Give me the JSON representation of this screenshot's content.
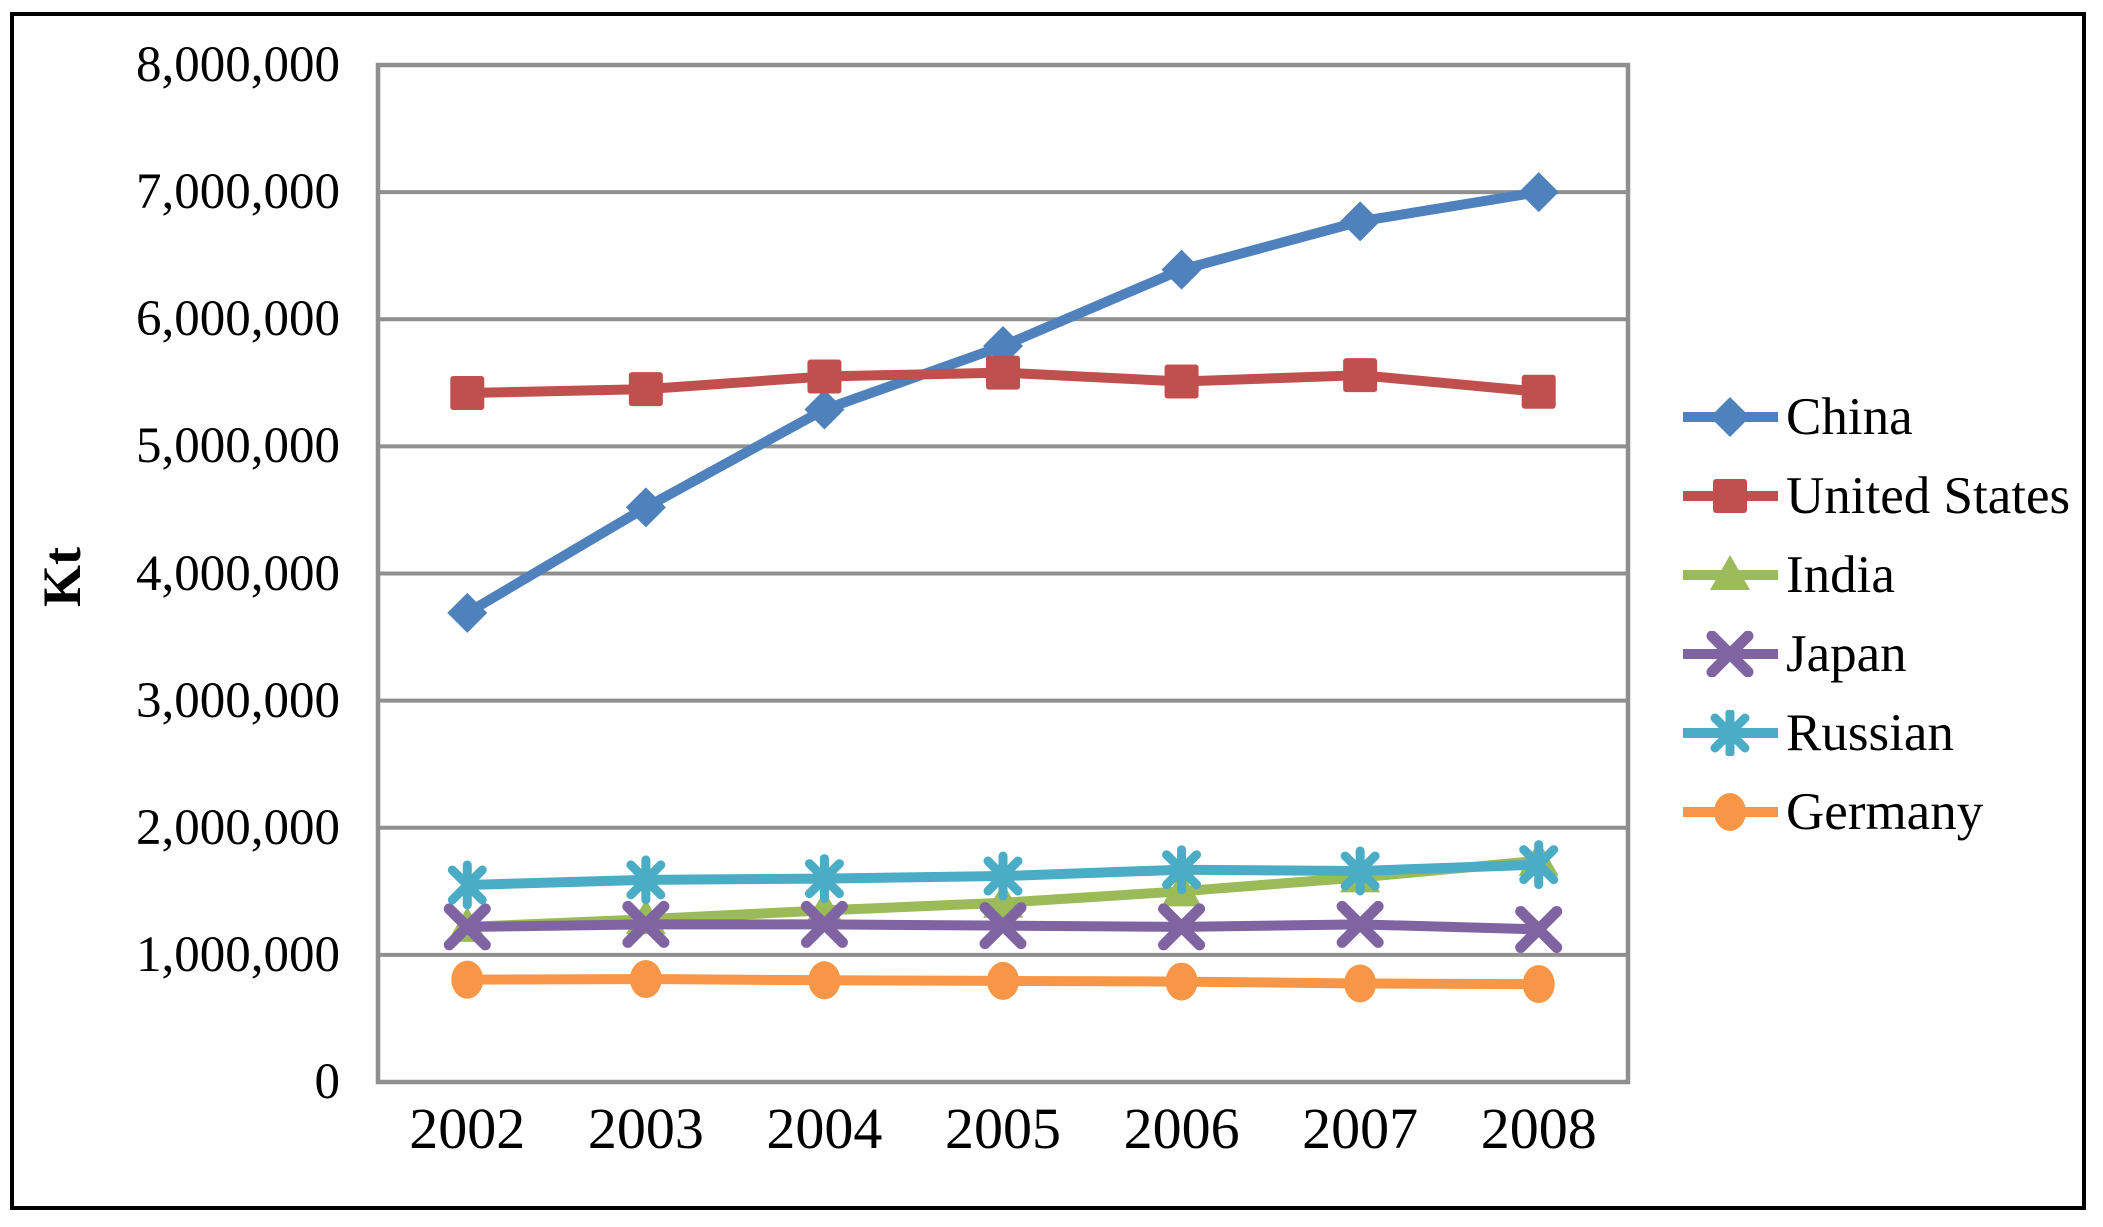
{
  "chart_data": {
    "type": "line",
    "title": "",
    "xlabel": "",
    "ylabel": "Kt",
    "categories": [
      "2002",
      "2003",
      "2004",
      "2005",
      "2006",
      "2007",
      "2008"
    ],
    "y_axis": {
      "min": 0,
      "max": 8000000,
      "tick_interval": 1000000,
      "tick_labels": [
        "0",
        "1,000,000",
        "2,000,000",
        "3,000,000",
        "4,000,000",
        "5,000,000",
        "6,000,000",
        "7,000,000",
        "8,000,000"
      ]
    },
    "grid": "horizontal",
    "legend_position": "right",
    "series": [
      {
        "name": "China",
        "color": "#4F81BD",
        "marker": "diamond",
        "values": [
          3690000,
          4520000,
          5290000,
          5790000,
          6390000,
          6770000,
          7000000
        ]
      },
      {
        "name": "United States",
        "color": "#C0504D",
        "marker": "square",
        "values": [
          5420000,
          5450000,
          5550000,
          5580000,
          5510000,
          5560000,
          5430000
        ]
      },
      {
        "name": "India",
        "color": "#9BBB59",
        "marker": "triangle",
        "values": [
          1220000,
          1280000,
          1350000,
          1410000,
          1500000,
          1610000,
          1740000
        ]
      },
      {
        "name": "Japan",
        "color": "#8064A2",
        "marker": "x",
        "values": [
          1220000,
          1240000,
          1240000,
          1230000,
          1220000,
          1240000,
          1200000
        ]
      },
      {
        "name": "Russian",
        "color": "#4BACC6",
        "marker": "star",
        "values": [
          1550000,
          1590000,
          1600000,
          1620000,
          1670000,
          1660000,
          1710000
        ]
      },
      {
        "name": "Germany",
        "color": "#F79646",
        "marker": "circle",
        "values": [
          805000,
          810000,
          800000,
          795000,
          790000,
          775000,
          770000
        ]
      }
    ]
  },
  "colors": {
    "gridline": "#8F8F8F",
    "axis": "#8F8F8F",
    "frame_border": "#000000",
    "background": "#FFFFFF",
    "text": "#000000"
  }
}
